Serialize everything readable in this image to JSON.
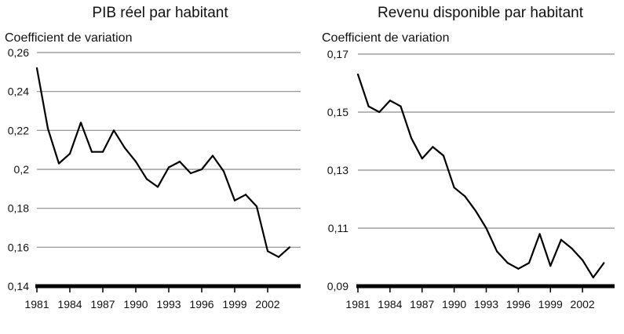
{
  "chart_data": [
    {
      "type": "line",
      "title": "PIB réel par habitant",
      "ylabel": "Coefficient de variation",
      "xlabel": "",
      "ylim": [
        0.14,
        0.26
      ],
      "yticks": [
        0.14,
        0.16,
        0.18,
        0.2,
        0.22,
        0.24,
        0.26
      ],
      "ytick_labels": [
        "0,14",
        "0,16",
        "0,18",
        "0,2",
        "0,22",
        "0,24",
        "0,26"
      ],
      "xlim": [
        1981,
        2005
      ],
      "xticks": [
        1981,
        1984,
        1987,
        1990,
        1993,
        1996,
        1999,
        2002
      ],
      "xtick_labels": [
        "1981",
        "1984",
        "1987",
        "1990",
        "1993",
        "1996",
        "1999",
        "2002"
      ],
      "grid": "horizontal",
      "x": [
        1981,
        1982,
        1983,
        1984,
        1985,
        1986,
        1987,
        1988,
        1989,
        1990,
        1991,
        1992,
        1993,
        1994,
        1995,
        1996,
        1997,
        1998,
        1999,
        2000,
        2001,
        2002,
        2003,
        2004
      ],
      "values": [
        0.252,
        0.221,
        0.203,
        0.208,
        0.224,
        0.209,
        0.209,
        0.22,
        0.211,
        0.204,
        0.195,
        0.191,
        0.201,
        0.204,
        0.198,
        0.2,
        0.207,
        0.199,
        0.184,
        0.187,
        0.181,
        0.158,
        0.155,
        0.16
      ]
    },
    {
      "type": "line",
      "title": "Revenu disponible par habitant",
      "ylabel": "Coefficient de variation",
      "xlabel": "",
      "ylim": [
        0.09,
        0.17
      ],
      "yticks": [
        0.09,
        0.11,
        0.13,
        0.15,
        0.17
      ],
      "ytick_labels": [
        "0,09",
        "0,11",
        "0,13",
        "0,15",
        "0,17"
      ],
      "xlim": [
        1981,
        2005
      ],
      "xticks": [
        1981,
        1984,
        1987,
        1990,
        1993,
        1996,
        1999,
        2002
      ],
      "xtick_labels": [
        "1981",
        "1984",
        "1987",
        "1990",
        "1993",
        "1996",
        "1999",
        "2002"
      ],
      "grid": "horizontal",
      "x": [
        1981,
        1982,
        1983,
        1984,
        1985,
        1986,
        1987,
        1988,
        1989,
        1990,
        1991,
        1992,
        1993,
        1994,
        1995,
        1996,
        1997,
        1998,
        1999,
        2000,
        2001,
        2002,
        2003,
        2004
      ],
      "values": [
        0.163,
        0.152,
        0.15,
        0.154,
        0.152,
        0.141,
        0.134,
        0.138,
        0.135,
        0.124,
        0.121,
        0.116,
        0.11,
        0.102,
        0.098,
        0.096,
        0.098,
        0.108,
        0.097,
        0.106,
        0.103,
        0.099,
        0.093,
        0.098
      ]
    }
  ],
  "colors": {
    "line": "#000000",
    "grid": "#8c8c8c",
    "axis": "#000000",
    "background": "#ffffff"
  }
}
